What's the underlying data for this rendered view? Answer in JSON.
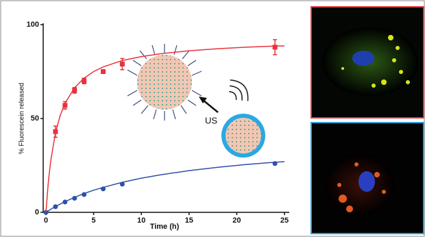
{
  "chart_data": {
    "type": "scatter",
    "ylabel": "% Fluorescein released",
    "xlabel": "Time (h)",
    "annotation": "US",
    "xlim": [
      0,
      25.5
    ],
    "xticks": [
      0,
      5,
      10,
      15,
      20,
      25
    ],
    "ylim": [
      0,
      100
    ],
    "yticks": [
      0,
      50,
      100
    ],
    "series": [
      {
        "color": "#e8323c",
        "marker": "square",
        "x": [
          1,
          2,
          3,
          4,
          6,
          8,
          24
        ],
        "values": [
          43,
          57,
          65,
          70,
          75,
          79,
          88
        ],
        "errors": [
          3,
          2,
          1.5,
          1.5,
          1,
          3,
          4
        ]
      },
      {
        "color": "#2f4fa8",
        "marker": "circle",
        "x": [
          0,
          1,
          2,
          3,
          4,
          6,
          8,
          24
        ],
        "values": [
          0,
          3,
          5.5,
          7.5,
          9.5,
          12.5,
          15,
          26
        ]
      },
      {
        "type": "line",
        "color": "#e8323c",
        "x": [
          0,
          0.25,
          0.5,
          1,
          1.5,
          2,
          3,
          4,
          5,
          6,
          8,
          10,
          12,
          15,
          18,
          21,
          24,
          25
        ],
        "values": [
          0,
          16.0,
          27.4,
          42.3,
          51.7,
          58.1,
          66.4,
          71.5,
          75.0,
          77.5,
          80.9,
          83.0,
          84.5,
          86.1,
          87.2,
          88.0,
          88.6,
          88.7
        ]
      },
      {
        "type": "line",
        "color": "#2f4fa8",
        "x": [
          0,
          0.25,
          0.5,
          1,
          1.5,
          2,
          3,
          4,
          5,
          6,
          8,
          10,
          12,
          15,
          18,
          21,
          24,
          25
        ],
        "values": [
          0,
          0.8,
          1.6,
          3.1,
          4.4,
          5.7,
          8.0,
          10.0,
          11.8,
          13.3,
          16.0,
          18.2,
          20.0,
          22.2,
          24.0,
          25.5,
          26.7,
          27.0
        ]
      }
    ]
  }
}
